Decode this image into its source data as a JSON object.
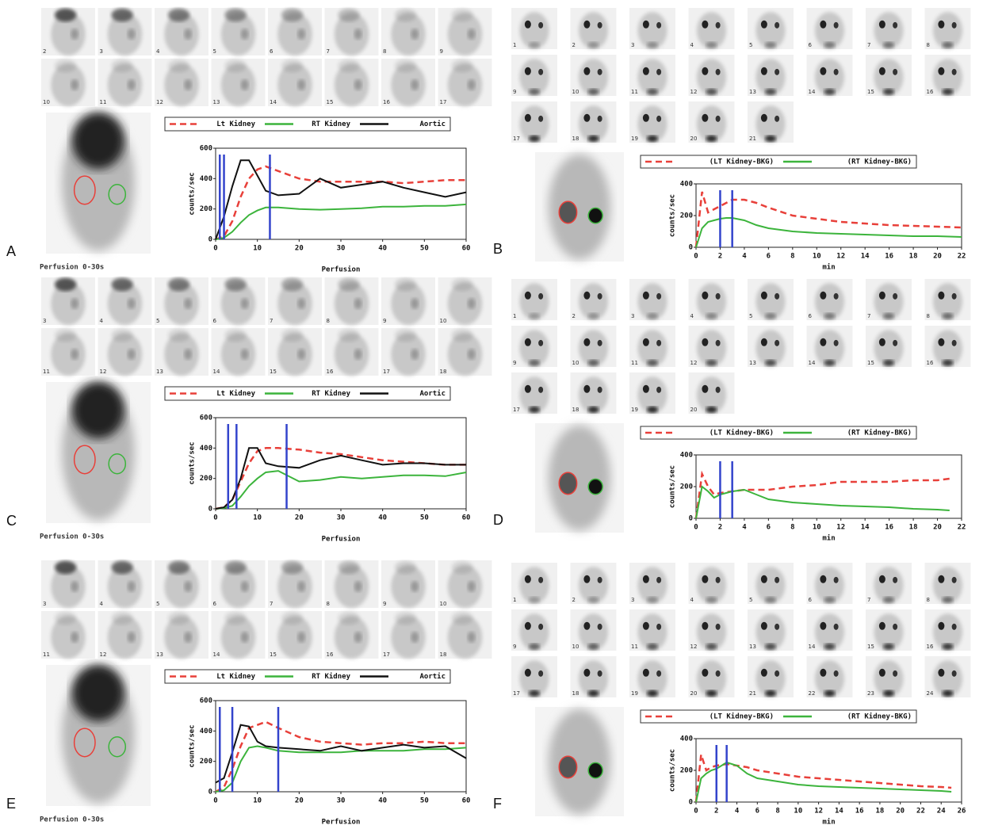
{
  "chart_data": [
    {
      "type": "line",
      "panel": "A",
      "caption": "Perfusion 0-30s",
      "frames": [
        2,
        3,
        4,
        5,
        6,
        7,
        8,
        9,
        10,
        11,
        12,
        13,
        14,
        15,
        16,
        17
      ],
      "xlabel": "Perfusion",
      "ylabel": "counts/sec",
      "x": [
        0,
        2,
        4,
        6,
        8,
        10,
        12,
        15,
        20,
        25,
        30,
        35,
        40,
        45,
        50,
        55,
        60
      ],
      "xlim": [
        0,
        60
      ],
      "xticks": [
        0,
        10,
        20,
        30,
        40,
        50,
        60
      ],
      "ylim": [
        0,
        600
      ],
      "yticks": [
        0,
        200,
        400,
        600
      ],
      "vlines": [
        1,
        2,
        13
      ],
      "vline_color": "#3344cc",
      "series": [
        {
          "name": "Lt Kidney",
          "color": "#e8403a",
          "dashed": true,
          "values": [
            0,
            20,
            120,
            280,
            400,
            460,
            480,
            450,
            400,
            380,
            380,
            380,
            380,
            370,
            380,
            390,
            390
          ]
        },
        {
          "name": "RT Kidney",
          "color": "#3cb43c",
          "dashed": false,
          "values": [
            0,
            10,
            50,
            110,
            160,
            190,
            210,
            210,
            200,
            195,
            200,
            205,
            215,
            215,
            220,
            220,
            230
          ]
        },
        {
          "name": "Aortic",
          "color": "#111111",
          "dashed": false,
          "values": [
            0,
            150,
            350,
            520,
            520,
            420,
            320,
            290,
            300,
            400,
            340,
            360,
            380,
            340,
            310,
            280,
            310
          ]
        }
      ]
    },
    {
      "type": "line",
      "panel": "B",
      "frames": [
        1,
        2,
        3,
        4,
        5,
        6,
        7,
        8,
        9,
        10,
        11,
        12,
        13,
        14,
        15,
        16,
        17,
        18,
        19,
        20,
        21
      ],
      "xlabel": "min",
      "ylabel": "counts/sec",
      "x": [
        0,
        0.5,
        1,
        1.5,
        2,
        2.5,
        3,
        4,
        5,
        6,
        8,
        10,
        12,
        14,
        16,
        18,
        20,
        22
      ],
      "xlim": [
        0,
        22
      ],
      "xticks": [
        0,
        2,
        4,
        6,
        8,
        10,
        12,
        14,
        16,
        18,
        20,
        22
      ],
      "ylim": [
        0,
        400
      ],
      "yticks": [
        0,
        200,
        400
      ],
      "vlines": [
        2,
        3
      ],
      "vline_color": "#3344cc",
      "series": [
        {
          "name": "(LT Kidney-BKG)",
          "color": "#e8403a",
          "dashed": true,
          "values": [
            0,
            350,
            220,
            240,
            260,
            280,
            300,
            300,
            280,
            250,
            200,
            180,
            160,
            150,
            140,
            135,
            130,
            125
          ]
        },
        {
          "name": "(RT Kidney-BKG)",
          "color": "#3cb43c",
          "dashed": false,
          "values": [
            0,
            120,
            160,
            170,
            180,
            185,
            185,
            170,
            140,
            120,
            100,
            90,
            85,
            80,
            75,
            70,
            70,
            65
          ]
        }
      ]
    },
    {
      "type": "line",
      "panel": "C",
      "caption": "Perfusion 0-30s",
      "frames": [
        3,
        4,
        5,
        6,
        7,
        8,
        9,
        10,
        11,
        12,
        13,
        14,
        15,
        16,
        17,
        18
      ],
      "xlabel": "Perfusion",
      "ylabel": "counts/sec",
      "x": [
        0,
        2,
        4,
        6,
        8,
        10,
        12,
        15,
        20,
        25,
        30,
        35,
        40,
        45,
        50,
        55,
        60
      ],
      "xlim": [
        0,
        60
      ],
      "xticks": [
        0,
        10,
        20,
        30,
        40,
        50,
        60
      ],
      "ylim": [
        0,
        600
      ],
      "yticks": [
        0,
        200,
        400,
        600
      ],
      "vlines": [
        3,
        5,
        17
      ],
      "vline_color": "#3344cc",
      "series": [
        {
          "name": "Lt Kidney",
          "color": "#e8403a",
          "dashed": true,
          "values": [
            0,
            10,
            60,
            180,
            300,
            380,
            400,
            400,
            390,
            370,
            360,
            340,
            320,
            310,
            300,
            290,
            290
          ]
        },
        {
          "name": "RT Kidney",
          "color": "#3cb43c",
          "dashed": false,
          "values": [
            0,
            5,
            20,
            80,
            150,
            200,
            240,
            250,
            180,
            190,
            210,
            200,
            210,
            220,
            220,
            215,
            240
          ]
        },
        {
          "name": "Aortic",
          "color": "#111111",
          "dashed": false,
          "values": [
            0,
            10,
            60,
            200,
            400,
            400,
            300,
            280,
            270,
            320,
            350,
            320,
            290,
            300,
            300,
            290,
            290
          ]
        }
      ]
    },
    {
      "type": "line",
      "panel": "D",
      "frames": [
        1,
        2,
        3,
        4,
        5,
        6,
        7,
        8,
        9,
        10,
        11,
        12,
        13,
        14,
        15,
        16,
        17,
        18,
        19,
        20
      ],
      "xlabel": "min",
      "ylabel": "counts/sec",
      "x": [
        0,
        0.5,
        1,
        1.5,
        2,
        3,
        4,
        5,
        6,
        8,
        10,
        12,
        14,
        16,
        18,
        20,
        21
      ],
      "xlim": [
        0,
        22
      ],
      "xticks": [
        0,
        2,
        4,
        6,
        8,
        10,
        12,
        14,
        16,
        18,
        20,
        22
      ],
      "ylim": [
        0,
        400
      ],
      "yticks": [
        0,
        200,
        400
      ],
      "vlines": [
        2,
        3
      ],
      "vline_color": "#3344cc",
      "series": [
        {
          "name": "(LT Kidney-BKG)",
          "color": "#e8403a",
          "dashed": true,
          "values": [
            0,
            280,
            200,
            150,
            160,
            170,
            180,
            180,
            180,
            200,
            210,
            230,
            230,
            230,
            240,
            240,
            250
          ]
        },
        {
          "name": "(RT Kidney-BKG)",
          "color": "#3cb43c",
          "dashed": false,
          "values": [
            0,
            200,
            170,
            130,
            150,
            170,
            180,
            150,
            120,
            100,
            90,
            80,
            75,
            70,
            60,
            55,
            50
          ]
        }
      ]
    },
    {
      "type": "line",
      "panel": "E",
      "caption": "Perfusion 0-30s",
      "frames": [
        3,
        4,
        5,
        6,
        7,
        8,
        9,
        10,
        11,
        12,
        13,
        14,
        15,
        16,
        17,
        18
      ],
      "xlabel": "Perfusion",
      "ylabel": "counts/sec",
      "x": [
        0,
        2,
        4,
        6,
        8,
        10,
        12,
        15,
        20,
        25,
        30,
        35,
        40,
        45,
        50,
        55,
        60
      ],
      "xlim": [
        0,
        60
      ],
      "xticks": [
        0,
        10,
        20,
        30,
        40,
        50,
        60
      ],
      "ylim": [
        0,
        600
      ],
      "yticks": [
        0,
        200,
        400,
        600
      ],
      "vlines": [
        1,
        4,
        15
      ],
      "vline_color": "#3344cc",
      "series": [
        {
          "name": "Lt Kidney",
          "color": "#e8403a",
          "dashed": true,
          "values": [
            0,
            30,
            150,
            300,
            420,
            440,
            460,
            420,
            360,
            330,
            320,
            310,
            320,
            320,
            330,
            320,
            320
          ]
        },
        {
          "name": "RT Kidney",
          "color": "#3cb43c",
          "dashed": false,
          "values": [
            0,
            10,
            60,
            200,
            290,
            300,
            290,
            270,
            260,
            260,
            260,
            270,
            270,
            270,
            280,
            280,
            290
          ]
        },
        {
          "name": "Aortic",
          "color": "#111111",
          "dashed": false,
          "values": [
            60,
            90,
            260,
            440,
            430,
            330,
            300,
            290,
            280,
            270,
            300,
            270,
            290,
            310,
            290,
            300,
            220
          ]
        }
      ]
    },
    {
      "type": "line",
      "panel": "F",
      "frames": [
        1,
        2,
        3,
        4,
        5,
        6,
        7,
        8,
        9,
        10,
        11,
        12,
        13,
        14,
        15,
        16,
        17,
        18,
        19,
        20,
        21,
        22,
        23,
        24
      ],
      "xlabel": "min",
      "ylabel": "counts/sec",
      "x": [
        0,
        0.5,
        1,
        1.5,
        2,
        3,
        4,
        5,
        6,
        8,
        10,
        12,
        14,
        16,
        18,
        20,
        22,
        24,
        25
      ],
      "xlim": [
        0,
        26
      ],
      "xticks": [
        0,
        2,
        4,
        6,
        8,
        10,
        12,
        14,
        16,
        18,
        20,
        22,
        24,
        26
      ],
      "ylim": [
        0,
        400
      ],
      "yticks": [
        0,
        200,
        400
      ],
      "vlines": [
        2,
        3
      ],
      "vline_color": "#3344cc",
      "series": [
        {
          "name": "(LT Kidney-BKG)",
          "color": "#e8403a",
          "dashed": true,
          "values": [
            0,
            300,
            200,
            220,
            230,
            240,
            230,
            220,
            200,
            180,
            160,
            150,
            140,
            130,
            120,
            110,
            100,
            95,
            90
          ]
        },
        {
          "name": "(RT Kidney-BKG)",
          "color": "#3cb43c",
          "dashed": false,
          "values": [
            0,
            150,
            180,
            200,
            210,
            250,
            230,
            180,
            150,
            130,
            110,
            100,
            95,
            90,
            85,
            80,
            75,
            70,
            65
          ]
        }
      ]
    }
  ]
}
